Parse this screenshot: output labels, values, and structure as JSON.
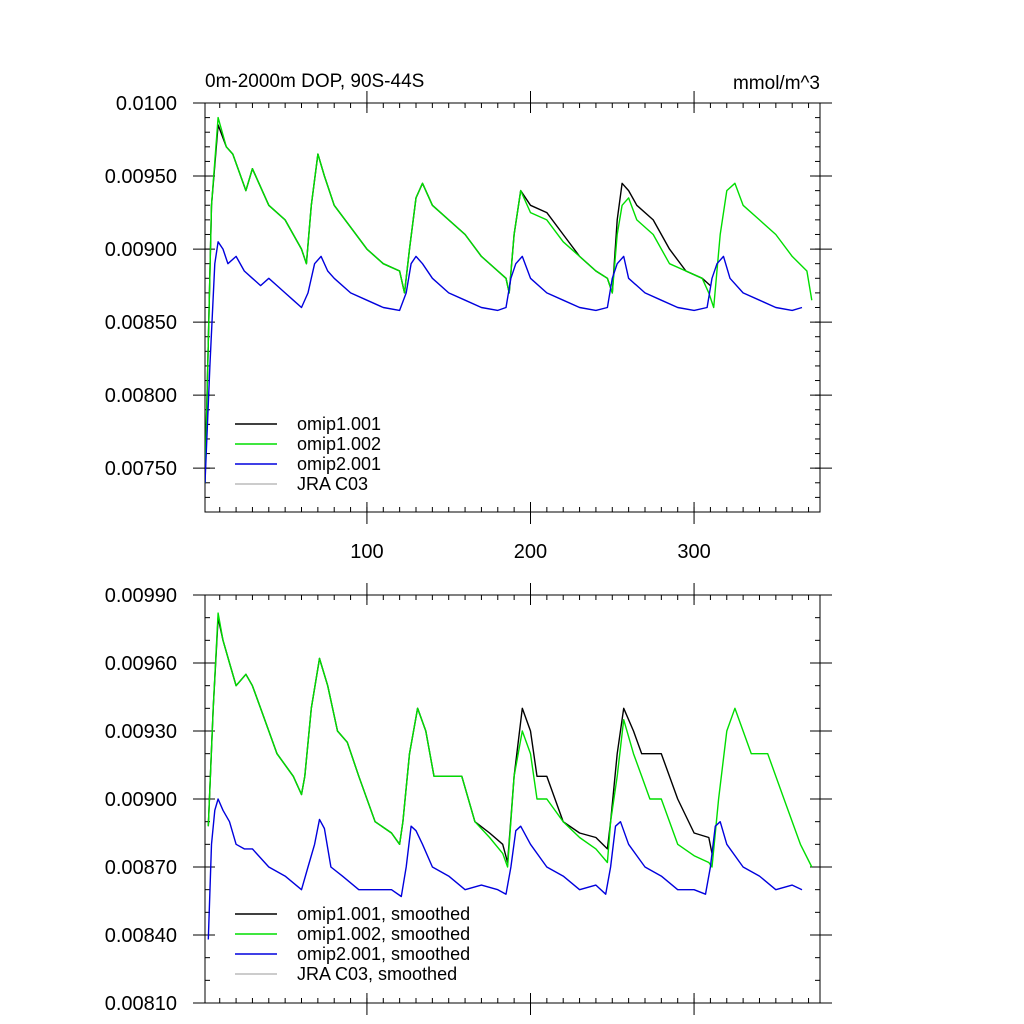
{
  "chart_data": [
    {
      "type": "line",
      "title": "0m-2000m DOP, 90S-44S",
      "units": "mmol/m^3",
      "xlim": [
        1,
        377
      ],
      "ylim": [
        0.0072,
        0.01
      ],
      "x_ticks": [
        100,
        200,
        300
      ],
      "x_tick_labels": [
        "100",
        "200",
        "300"
      ],
      "y_ticks": [
        0.0075,
        0.008,
        0.0085,
        0.009,
        0.0095,
        0.01
      ],
      "y_tick_labels": [
        "0.00750",
        "0.00800",
        "0.00850",
        "0.00900",
        "0.00950",
        "0.0100"
      ],
      "legend": [
        "omip1.001",
        "omip1.002",
        "omip2.001",
        "JRA C03"
      ],
      "series": [
        {
          "name": "omip1.001",
          "color": "#000000",
          "x": [
            1,
            5,
            9,
            14,
            18,
            26,
            30,
            40,
            50,
            60,
            63,
            66,
            70,
            74,
            80,
            90,
            100,
            110,
            120,
            123,
            126,
            130,
            134,
            140,
            150,
            160,
            170,
            180,
            185,
            187,
            190,
            194,
            200,
            210,
            220,
            230,
            240,
            247,
            250,
            253,
            256,
            260,
            265,
            275,
            285,
            295,
            305,
            310
          ],
          "y": [
            0.0074,
            0.0093,
            0.00985,
            0.0097,
            0.00965,
            0.0094,
            0.00955,
            0.0093,
            0.0092,
            0.009,
            0.0089,
            0.0093,
            0.00965,
            0.0095,
            0.0093,
            0.00915,
            0.009,
            0.0089,
            0.00885,
            0.0087,
            0.009,
            0.00935,
            0.00945,
            0.0093,
            0.0092,
            0.0091,
            0.00895,
            0.00885,
            0.0088,
            0.0087,
            0.0091,
            0.0094,
            0.0093,
            0.00925,
            0.0091,
            0.00895,
            0.00885,
            0.0088,
            0.0087,
            0.0092,
            0.00945,
            0.0094,
            0.0093,
            0.0092,
            0.009,
            0.00885,
            0.0088,
            0.00875
          ]
        },
        {
          "name": "omip1.002",
          "color": "#00dd00",
          "x": [
            1,
            5,
            9,
            14,
            18,
            26,
            30,
            40,
            50,
            60,
            63,
            66,
            70,
            74,
            80,
            90,
            100,
            110,
            120,
            123,
            126,
            130,
            134,
            140,
            150,
            160,
            170,
            180,
            185,
            187,
            190,
            194,
            200,
            210,
            220,
            230,
            240,
            247,
            250,
            253,
            256,
            260,
            265,
            275,
            285,
            295,
            305,
            309,
            312,
            316,
            320,
            325,
            330,
            340,
            350,
            360,
            369,
            372
          ],
          "y": [
            0.0074,
            0.0093,
            0.0099,
            0.0097,
            0.00965,
            0.0094,
            0.00955,
            0.0093,
            0.0092,
            0.009,
            0.0089,
            0.0093,
            0.00965,
            0.0095,
            0.0093,
            0.00915,
            0.009,
            0.0089,
            0.00885,
            0.0087,
            0.009,
            0.00935,
            0.00945,
            0.0093,
            0.0092,
            0.0091,
            0.00895,
            0.00885,
            0.0088,
            0.0087,
            0.0091,
            0.0094,
            0.00925,
            0.0092,
            0.00905,
            0.00895,
            0.00885,
            0.0088,
            0.0087,
            0.0091,
            0.0093,
            0.00935,
            0.0092,
            0.0091,
            0.0089,
            0.00885,
            0.0088,
            0.0087,
            0.0086,
            0.0091,
            0.0094,
            0.00945,
            0.0093,
            0.0092,
            0.0091,
            0.00895,
            0.00885,
            0.00865
          ]
        },
        {
          "name": "omip2.001",
          "color": "#0000dd",
          "x": [
            1,
            4,
            7,
            9,
            12,
            15,
            20,
            25,
            30,
            35,
            40,
            45,
            50,
            55,
            60,
            64,
            68,
            72,
            76,
            80,
            90,
            100,
            110,
            120,
            124,
            127,
            130,
            134,
            140,
            150,
            160,
            170,
            180,
            185,
            188,
            191,
            195,
            200,
            210,
            220,
            230,
            240,
            247,
            250,
            253,
            257,
            260,
            270,
            280,
            290,
            300,
            308,
            311,
            314,
            318,
            322,
            330,
            340,
            350,
            360,
            366
          ],
          "y": [
            0.0074,
            0.0082,
            0.0089,
            0.00905,
            0.009,
            0.0089,
            0.00895,
            0.00885,
            0.0088,
            0.00875,
            0.0088,
            0.00875,
            0.0087,
            0.00865,
            0.0086,
            0.0087,
            0.0089,
            0.00895,
            0.00885,
            0.0088,
            0.0087,
            0.00865,
            0.0086,
            0.00858,
            0.0087,
            0.0089,
            0.00895,
            0.0089,
            0.0088,
            0.0087,
            0.00865,
            0.0086,
            0.00858,
            0.0086,
            0.0088,
            0.0089,
            0.00895,
            0.0088,
            0.0087,
            0.00865,
            0.0086,
            0.00858,
            0.0086,
            0.0088,
            0.0089,
            0.00895,
            0.0088,
            0.0087,
            0.00865,
            0.0086,
            0.00858,
            0.0086,
            0.0088,
            0.0089,
            0.00895,
            0.0088,
            0.0087,
            0.00865,
            0.0086,
            0.00858,
            0.0086
          ]
        },
        {
          "name": "JRA C03",
          "color": "#bbbbbb",
          "x": [],
          "y": []
        }
      ]
    },
    {
      "type": "line",
      "title": "",
      "units": "",
      "xlim": [
        1,
        377
      ],
      "ylim": [
        0.0081,
        0.0099
      ],
      "x_ticks": [
        100,
        200,
        300
      ],
      "x_tick_labels": [],
      "y_ticks": [
        0.0081,
        0.0084,
        0.0087,
        0.009,
        0.0093,
        0.0096,
        0.0099
      ],
      "y_tick_labels": [
        "0.00810",
        "0.00840",
        "0.00870",
        "0.00900",
        "0.00930",
        "0.00960",
        "0.00990"
      ],
      "legend": [
        "omip1.001, smoothed",
        "omip1.002, smoothed",
        "omip2.001, smoothed",
        "JRA C03, smoothed"
      ],
      "series": [
        {
          "name": "omip1.001, smoothed",
          "color": "#000000",
          "x": [
            3,
            6,
            9,
            12,
            16,
            20,
            26,
            30,
            35,
            45,
            55,
            60,
            62,
            66,
            71,
            76,
            82,
            88,
            95,
            105,
            115,
            120,
            122,
            126,
            131,
            136,
            141,
            150,
            158,
            166,
            175,
            183,
            186,
            190,
            195,
            200,
            204,
            210,
            220,
            230,
            240,
            247,
            249,
            253,
            257,
            263,
            268,
            273,
            280,
            290,
            300,
            309,
            311
          ],
          "y": [
            0.00888,
            0.0094,
            0.0098,
            0.0097,
            0.0096,
            0.0095,
            0.00955,
            0.0095,
            0.0094,
            0.0092,
            0.0091,
            0.00902,
            0.0091,
            0.0094,
            0.00962,
            0.0095,
            0.0093,
            0.00925,
            0.0091,
            0.0089,
            0.00885,
            0.0088,
            0.0089,
            0.0092,
            0.0094,
            0.0093,
            0.0091,
            0.0091,
            0.0091,
            0.0089,
            0.00885,
            0.0088,
            0.00872,
            0.0091,
            0.0094,
            0.0093,
            0.0091,
            0.0091,
            0.0089,
            0.00885,
            0.00883,
            0.00878,
            0.0089,
            0.0092,
            0.0094,
            0.0093,
            0.0092,
            0.0092,
            0.0092,
            0.009,
            0.00885,
            0.00883,
            0.00876
          ]
        },
        {
          "name": "omip1.002, smoothed",
          "color": "#00dd00",
          "x": [
            3,
            6,
            9,
            12,
            16,
            20,
            26,
            30,
            35,
            45,
            55,
            60,
            62,
            66,
            71,
            76,
            82,
            88,
            95,
            105,
            115,
            120,
            122,
            126,
            131,
            136,
            141,
            150,
            158,
            166,
            175,
            183,
            186,
            190,
            195,
            200,
            204,
            210,
            220,
            230,
            240,
            247,
            249,
            253,
            257,
            263,
            268,
            273,
            280,
            290,
            300,
            309,
            311,
            315,
            320,
            325,
            335,
            345,
            355,
            365,
            372
          ],
          "y": [
            0.00888,
            0.0094,
            0.00982,
            0.0097,
            0.0096,
            0.0095,
            0.00955,
            0.0095,
            0.0094,
            0.0092,
            0.0091,
            0.00902,
            0.0091,
            0.0094,
            0.00962,
            0.0095,
            0.0093,
            0.00925,
            0.0091,
            0.0089,
            0.00885,
            0.0088,
            0.0089,
            0.0092,
            0.0094,
            0.0093,
            0.0091,
            0.0091,
            0.0091,
            0.0089,
            0.00883,
            0.00876,
            0.0087,
            0.0091,
            0.0093,
            0.0092,
            0.009,
            0.009,
            0.0089,
            0.00883,
            0.00878,
            0.00872,
            0.0089,
            0.0091,
            0.00935,
            0.0092,
            0.0091,
            0.009,
            0.009,
            0.0088,
            0.00875,
            0.00872,
            0.0087,
            0.009,
            0.0093,
            0.0094,
            0.0092,
            0.0092,
            0.009,
            0.0088,
            0.0087
          ]
        },
        {
          "name": "omip2.001, smoothed",
          "color": "#0000dd",
          "x": [
            3,
            5,
            7,
            9,
            12,
            16,
            20,
            25,
            30,
            40,
            50,
            60,
            64,
            68,
            71,
            74,
            78,
            85,
            95,
            105,
            115,
            121,
            124,
            127,
            130,
            134,
            140,
            150,
            160,
            170,
            180,
            185,
            188,
            191,
            194,
            200,
            210,
            220,
            230,
            240,
            246,
            249,
            252,
            255,
            260,
            270,
            280,
            290,
            300,
            307,
            310,
            313,
            316,
            320,
            330,
            340,
            350,
            360,
            366
          ],
          "y": [
            0.00838,
            0.0088,
            0.00895,
            0.009,
            0.00895,
            0.0089,
            0.0088,
            0.00878,
            0.00878,
            0.0087,
            0.00866,
            0.0086,
            0.0087,
            0.0088,
            0.00891,
            0.00887,
            0.0087,
            0.00866,
            0.0086,
            0.0086,
            0.0086,
            0.00857,
            0.0087,
            0.00888,
            0.00886,
            0.0088,
            0.0087,
            0.00866,
            0.0086,
            0.00862,
            0.0086,
            0.00858,
            0.0087,
            0.00886,
            0.00888,
            0.0088,
            0.0087,
            0.00866,
            0.0086,
            0.00862,
            0.00858,
            0.0087,
            0.00888,
            0.0089,
            0.0088,
            0.0087,
            0.00866,
            0.0086,
            0.0086,
            0.00858,
            0.0087,
            0.00888,
            0.0089,
            0.0088,
            0.0087,
            0.00866,
            0.0086,
            0.00862,
            0.0086
          ]
        },
        {
          "name": "JRA C03, smoothed",
          "color": "#bbbbbb",
          "x": [],
          "y": []
        }
      ]
    }
  ]
}
